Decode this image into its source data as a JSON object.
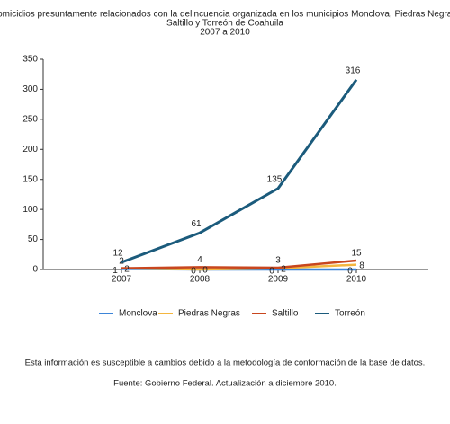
{
  "chart_data": {
    "type": "line",
    "title": [
      "Homicidios presuntamente relacionados con la delincuencia organizada en los municipios Monclova, Piedras Negras,",
      "Saltillo y Torreón de Coahuila",
      "2007 a 2010"
    ],
    "categories": [
      "2007",
      "2008",
      "2009",
      "2010"
    ],
    "series": [
      {
        "name": "Monclova",
        "color": "#3d85d8",
        "values": [
          1,
          0,
          0,
          0
        ]
      },
      {
        "name": "Piedras Negras",
        "color": "#f4b63f",
        "values": [
          2,
          0,
          2,
          8
        ]
      },
      {
        "name": "Saltillo",
        "color": "#c8461e",
        "values": [
          2,
          4,
          3,
          15
        ]
      },
      {
        "name": "Torreón",
        "color": "#1b5b7c",
        "values": [
          12,
          61,
          135,
          316
        ]
      }
    ],
    "ylim": [
      0,
      350
    ],
    "yticks": [
      0,
      50,
      100,
      150,
      200,
      250,
      300,
      350
    ]
  },
  "notes": [
    "Esta información es susceptible a cambios debido a la metodología de conformación de la base de datos.",
    "Fuente: Gobierno Federal. Actualización a diciembre 2010."
  ]
}
